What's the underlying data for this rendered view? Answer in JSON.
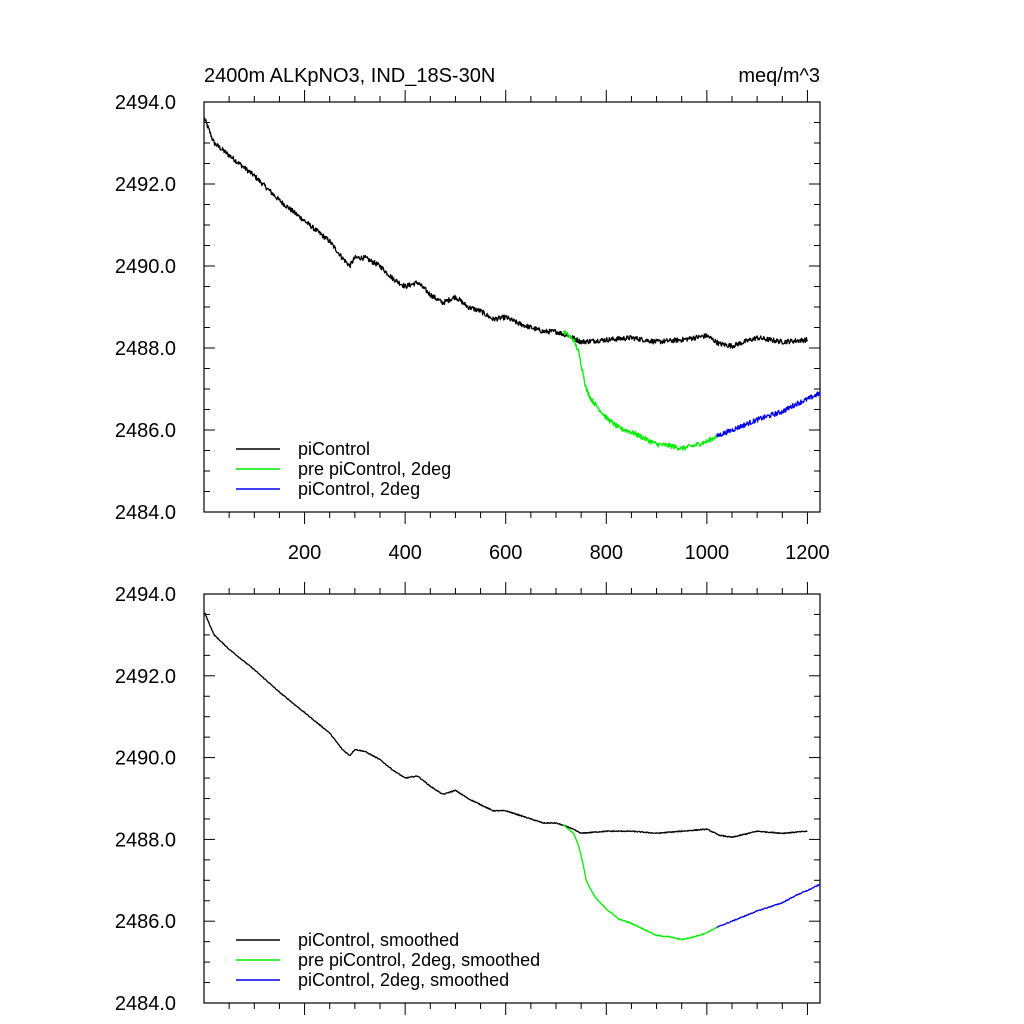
{
  "chart_data": [
    {
      "type": "line",
      "title": "2400m ALKpNO3, IND_18S-30N",
      "units": "meq/m^3",
      "xlabel": "",
      "ylabel": "",
      "xlim": [
        0,
        1225
      ],
      "ylim": [
        2484.0,
        2494.0
      ],
      "xticks": [
        200,
        400,
        600,
        800,
        1000,
        1200
      ],
      "xtick_labels": [
        "200",
        "400",
        "600",
        "800",
        "1000",
        "1200"
      ],
      "yticks": [
        2484,
        2486,
        2488,
        2490,
        2492,
        2494
      ],
      "ytick_labels": [
        "2484.0",
        "2486.0",
        "2488.0",
        "2490.0",
        "2492.0",
        "2494.0"
      ],
      "legend_position": "bottom-left",
      "noise": 0.06,
      "series": [
        {
          "name": "piControl",
          "color": "#000000",
          "x": [
            1,
            20,
            50,
            100,
            150,
            200,
            250,
            275,
            290,
            300,
            320,
            350,
            375,
            400,
            425,
            450,
            475,
            500,
            525,
            550,
            575,
            600,
            625,
            650,
            675,
            700,
            725,
            750,
            800,
            850,
            900,
            950,
            1000,
            1025,
            1050,
            1100,
            1150,
            1200
          ],
          "y": [
            2493.6,
            2493.0,
            2492.7,
            2492.2,
            2491.6,
            2491.1,
            2490.6,
            2490.2,
            2490.0,
            2490.2,
            2490.2,
            2490.0,
            2489.7,
            2489.5,
            2489.6,
            2489.3,
            2489.1,
            2489.25,
            2489.0,
            2488.9,
            2488.7,
            2488.75,
            2488.6,
            2488.5,
            2488.4,
            2488.4,
            2488.3,
            2488.15,
            2488.2,
            2488.25,
            2488.15,
            2488.2,
            2488.3,
            2488.1,
            2488.05,
            2488.25,
            2488.15,
            2488.2
          ]
        },
        {
          "name": "pre piControl, 2deg",
          "color": "#00ee00",
          "x": [
            715,
            735,
            745,
            752,
            760,
            770,
            780,
            800,
            825,
            850,
            900,
            925,
            950,
            975,
            1000,
            1020
          ],
          "y": [
            2488.4,
            2488.2,
            2487.9,
            2487.5,
            2487.0,
            2486.75,
            2486.6,
            2486.3,
            2486.05,
            2485.95,
            2485.65,
            2485.62,
            2485.55,
            2485.62,
            2485.72,
            2485.85
          ]
        },
        {
          "name": "piControl, 2deg",
          "color": "#0000ee",
          "x": [
            1020,
            1050,
            1100,
            1150,
            1180,
            1200,
            1225
          ],
          "y": [
            2485.85,
            2486.0,
            2486.25,
            2486.45,
            2486.65,
            2486.75,
            2486.9
          ]
        }
      ]
    },
    {
      "type": "line",
      "title": "",
      "xlim": [
        0,
        1225
      ],
      "ylim": [
        2484.0,
        2494.0
      ],
      "xticks": [
        200,
        400,
        600,
        800,
        1000,
        1200
      ],
      "xtick_labels": [],
      "yticks": [
        2484,
        2486,
        2488,
        2490,
        2492,
        2494
      ],
      "ytick_labels": [
        "2484.0",
        "2486.0",
        "2488.0",
        "2490.0",
        "2492.0",
        "2494.0"
      ],
      "legend_position": "bottom-left",
      "noise": 0.012,
      "series": [
        {
          "name": "piControl, smoothed",
          "color": "#000000",
          "x": [
            1,
            20,
            50,
            100,
            150,
            200,
            250,
            275,
            290,
            300,
            320,
            350,
            375,
            400,
            425,
            450,
            475,
            500,
            525,
            550,
            575,
            600,
            625,
            650,
            675,
            700,
            725,
            750,
            800,
            850,
            900,
            950,
            1000,
            1025,
            1050,
            1100,
            1150,
            1200
          ],
          "y": [
            2493.55,
            2493.0,
            2492.65,
            2492.15,
            2491.6,
            2491.1,
            2490.6,
            2490.2,
            2490.05,
            2490.2,
            2490.15,
            2489.95,
            2489.7,
            2489.5,
            2489.55,
            2489.3,
            2489.1,
            2489.2,
            2489.0,
            2488.85,
            2488.7,
            2488.7,
            2488.6,
            2488.5,
            2488.4,
            2488.4,
            2488.3,
            2488.15,
            2488.2,
            2488.2,
            2488.15,
            2488.2,
            2488.25,
            2488.1,
            2488.05,
            2488.2,
            2488.15,
            2488.2
          ]
        },
        {
          "name": "pre piControl, 2deg, smoothed",
          "color": "#00ee00",
          "x": [
            715,
            735,
            745,
            752,
            760,
            770,
            780,
            800,
            825,
            850,
            900,
            925,
            950,
            975,
            1000,
            1020
          ],
          "y": [
            2488.35,
            2488.15,
            2487.85,
            2487.5,
            2487.0,
            2486.75,
            2486.55,
            2486.3,
            2486.05,
            2485.95,
            2485.65,
            2485.62,
            2485.55,
            2485.62,
            2485.72,
            2485.85
          ]
        },
        {
          "name": "piControl, 2deg, smoothed",
          "color": "#0000ee",
          "x": [
            1020,
            1050,
            1100,
            1150,
            1180,
            1200,
            1225
          ],
          "y": [
            2485.85,
            2486.0,
            2486.25,
            2486.45,
            2486.65,
            2486.75,
            2486.9
          ]
        }
      ]
    }
  ]
}
